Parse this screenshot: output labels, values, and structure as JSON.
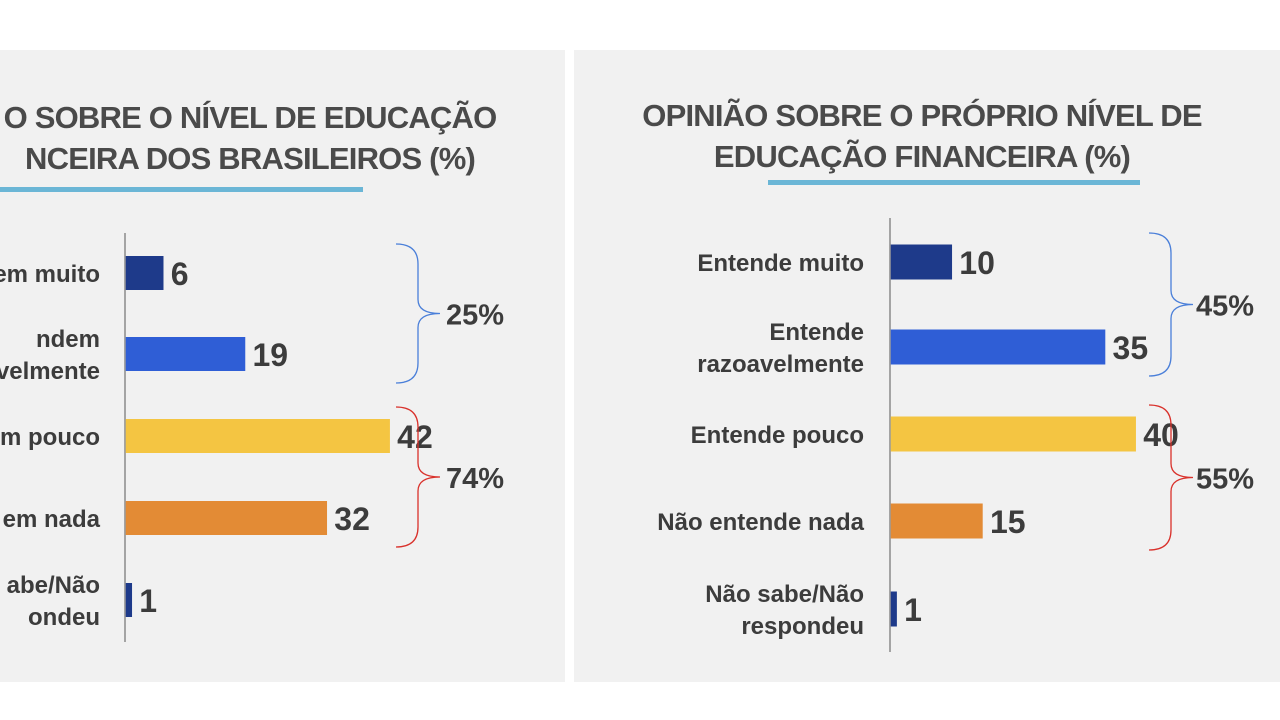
{
  "chart_data": [
    {
      "type": "bar",
      "orientation": "horizontal",
      "title_lines": [
        "O SOBRE O NÍVEL DE EDUCAÇÃO",
        "NCEIRA DOS BRASILEIROS (%)"
      ],
      "categories": [
        [
          "em muito"
        ],
        [
          "ndem",
          "velmente"
        ],
        [
          "m pouco"
        ],
        [
          "em nada"
        ],
        [
          "abe/Não",
          "ondeu"
        ]
      ],
      "values": [
        6,
        19,
        42,
        32,
        1
      ],
      "bar_colors": [
        "#1e3a8a",
        "#2f5ed6",
        "#f4c542",
        "#e38b35",
        "#1e3a8a"
      ],
      "groups": [
        {
          "label": "25%",
          "from": 0,
          "to": 1,
          "color": "#4a7fd9"
        },
        {
          "label": "74%",
          "from": 2,
          "to": 3,
          "color": "#d9312b"
        }
      ]
    },
    {
      "type": "bar",
      "orientation": "horizontal",
      "title_lines": [
        "OPINIÃO SOBRE O PRÓPRIO NÍVEL DE",
        "EDUCAÇÃO FINANCEIRA (%)"
      ],
      "categories": [
        [
          "Entende muito"
        ],
        [
          "Entende",
          "razoavelmente"
        ],
        [
          "Entende pouco"
        ],
        [
          "Não entende nada"
        ],
        [
          "Não sabe/Não",
          "respondeu"
        ]
      ],
      "values": [
        10,
        35,
        40,
        15,
        1
      ],
      "bar_colors": [
        "#1e3a8a",
        "#2f5ed6",
        "#f4c542",
        "#e38b35",
        "#1e3a8a"
      ],
      "groups": [
        {
          "label": "45%",
          "from": 0,
          "to": 1,
          "color": "#4a7fd9"
        },
        {
          "label": "55%",
          "from": 2,
          "to": 3,
          "color": "#d9312b"
        }
      ]
    }
  ]
}
